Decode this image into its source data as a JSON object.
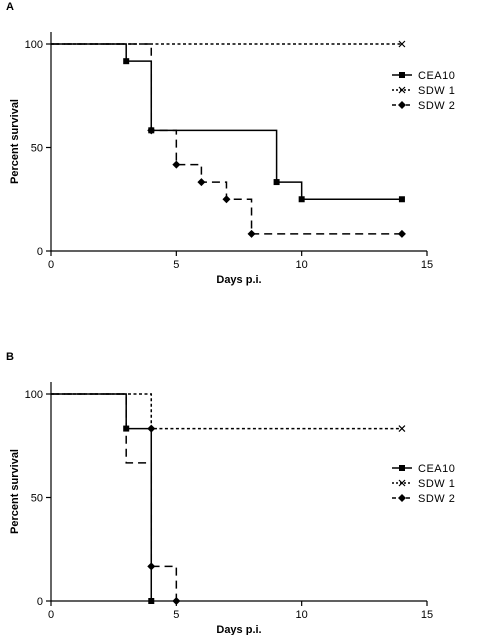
{
  "chart_data": [
    {
      "panel_label": "A",
      "type": "line",
      "step": true,
      "xlabel": "Days p.i.",
      "ylabel": "Percent survival",
      "xlim": [
        0,
        15
      ],
      "ylim": [
        0,
        100
      ],
      "xticks": [
        "0",
        "5",
        "10",
        "15"
      ],
      "yticks": [
        "0",
        "50",
        "100"
      ],
      "grid": false,
      "legend_position": "right",
      "series": [
        {
          "name": "CEA10",
          "style": "solid",
          "marker": "square",
          "x": [
            0,
            3,
            4,
            9,
            10,
            14
          ],
          "y": [
            100,
            91.7,
            58.3,
            33.3,
            25,
            25
          ],
          "markers_x": [
            3,
            4,
            9,
            10,
            14
          ],
          "markers_y": [
            91.7,
            58.3,
            33.3,
            25,
            25
          ]
        },
        {
          "name": "SDW 1",
          "style": "dotted",
          "marker": "x",
          "x": [
            0,
            14
          ],
          "y": [
            100,
            100
          ],
          "markers_x": [
            14
          ],
          "markers_y": [
            100
          ]
        },
        {
          "name": "SDW 2",
          "style": "dashed",
          "marker": "diamond",
          "x": [
            0,
            4,
            5,
            6,
            7,
            8,
            14
          ],
          "y": [
            100,
            58.3,
            41.7,
            33.3,
            25,
            8.3,
            8.3
          ],
          "markers_x": [
            4,
            5,
            6,
            7,
            8,
            14
          ],
          "markers_y": [
            58.3,
            41.7,
            33.3,
            25,
            8.3,
            8.3
          ]
        }
      ]
    },
    {
      "panel_label": "B",
      "type": "line",
      "step": true,
      "xlabel": "Days p.i.",
      "ylabel": "Percent survival",
      "xlim": [
        0,
        15
      ],
      "ylim": [
        0,
        100
      ],
      "xticks": [
        "0",
        "5",
        "10",
        "15"
      ],
      "yticks": [
        "0",
        "50",
        "100"
      ],
      "grid": false,
      "legend_position": "right",
      "series": [
        {
          "name": "CEA10",
          "style": "solid",
          "marker": "square",
          "x": [
            0,
            3,
            4
          ],
          "y": [
            100,
            83.3,
            0
          ],
          "markers_x": [
            3,
            4
          ],
          "markers_y": [
            83.3,
            0
          ]
        },
        {
          "name": "SDW 1",
          "style": "dotted",
          "marker": "x",
          "x": [
            0,
            4,
            14
          ],
          "y": [
            100,
            83.3,
            83.3
          ],
          "markers_x": [
            14
          ],
          "markers_y": [
            83.3
          ]
        },
        {
          "name": "SDW 2",
          "style": "dashed",
          "marker": "diamond",
          "x": [
            0,
            3,
            4,
            5
          ],
          "y": [
            100,
            66.7,
            16.7,
            0
          ],
          "markers_x": [
            4,
            4,
            5
          ],
          "markers_y": [
            83.3,
            16.7,
            0
          ]
        }
      ]
    }
  ]
}
